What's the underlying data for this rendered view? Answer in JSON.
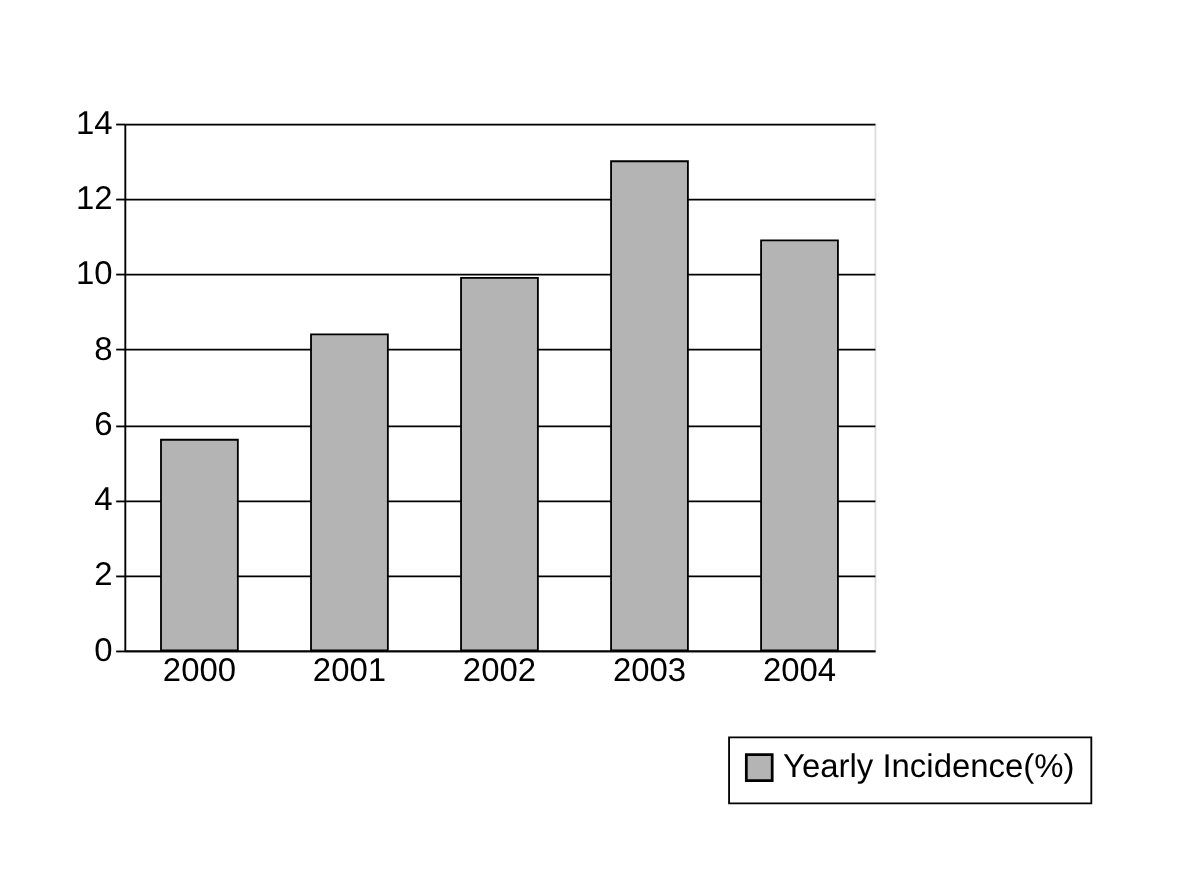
{
  "chart_data": {
    "type": "bar",
    "categories": [
      "2000",
      "2001",
      "2002",
      "2003",
      "2004"
    ],
    "series": [
      {
        "name": "Yearly Incidence(%)",
        "color": "#b4b4b4",
        "values": [
          5.6,
          8.4,
          9.9,
          13,
          10.9
        ]
      }
    ],
    "ylim": [
      0,
      14
    ],
    "yticks": [
      0,
      2,
      4,
      6,
      8,
      10,
      12,
      14
    ],
    "grid": "y",
    "legend": "bottom right"
  }
}
